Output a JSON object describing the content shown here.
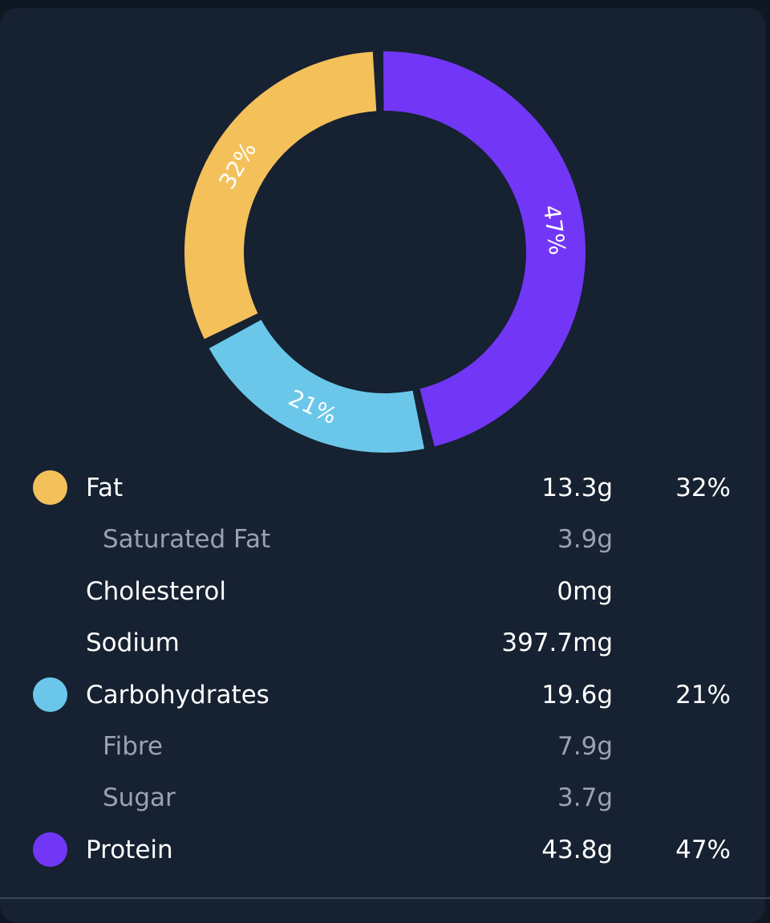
{
  "chart_data": {
    "type": "pie",
    "variant": "donut",
    "slices": [
      {
        "name": "Fat",
        "value": 32,
        "label": "32%",
        "color": "#f3c05a"
      },
      {
        "name": "Carbohydrates",
        "value": 21,
        "label": "21%",
        "color": "#6ac7ea"
      },
      {
        "name": "Protein",
        "value": 47,
        "label": "47%",
        "color": "#7237f6"
      }
    ]
  },
  "nutrients": [
    {
      "name": "Fat",
      "amount": "13.3g",
      "percent": "32%",
      "dot_color": "#f3c05a",
      "sub": false
    },
    {
      "name": "Saturated Fat",
      "amount": "3.9g",
      "percent": "",
      "dot_color": "",
      "sub": true
    },
    {
      "name": "Cholesterol",
      "amount": "0mg",
      "percent": "",
      "dot_color": "",
      "sub": false
    },
    {
      "name": "Sodium",
      "amount": "397.7mg",
      "percent": "",
      "dot_color": "",
      "sub": false
    },
    {
      "name": "Carbohydrates",
      "amount": "19.6g",
      "percent": "21%",
      "dot_color": "#6ac7ea",
      "sub": false
    },
    {
      "name": "Fibre",
      "amount": "7.9g",
      "percent": "",
      "dot_color": "",
      "sub": true
    },
    {
      "name": "Sugar",
      "amount": "3.7g",
      "percent": "",
      "dot_color": "",
      "sub": true
    },
    {
      "name": "Protein",
      "amount": "43.8g",
      "percent": "47%",
      "dot_color": "#7237f6",
      "sub": false
    }
  ]
}
